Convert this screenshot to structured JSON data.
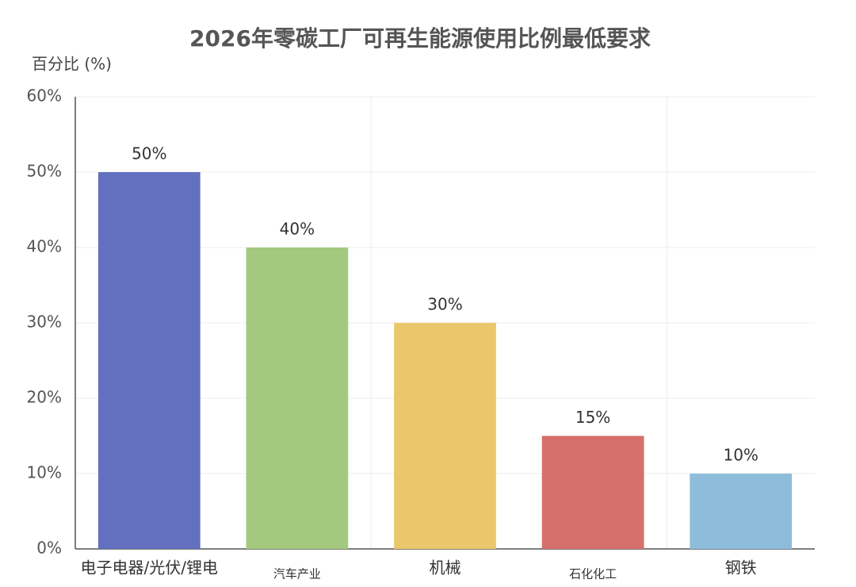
{
  "chart_data": {
    "type": "bar",
    "title": "2026年零碳工厂可再生能源使用比例最低要求",
    "y_label": "百分比 (%)",
    "categories": [
      "电子电器/光伏/锂电",
      "汽车产业",
      "机械",
      "石化化工",
      "钢铁"
    ],
    "values": [
      50,
      40,
      30,
      15,
      10
    ],
    "value_labels": [
      "50%",
      "40%",
      "30%",
      "15%",
      "10%"
    ],
    "colors": [
      "#6270bf",
      "#a3c97f",
      "#eac76b",
      "#d5706a",
      "#8ebddc"
    ],
    "ylim": [
      0,
      60
    ],
    "yticks": [
      {
        "value": 0,
        "label": "0%"
      },
      {
        "value": 10,
        "label": "10%"
      },
      {
        "value": 20,
        "label": "20%"
      },
      {
        "value": 30,
        "label": "30%"
      },
      {
        "value": 40,
        "label": "40%"
      },
      {
        "value": 50,
        "label": "50%"
      },
      {
        "value": 60,
        "label": "60%"
      }
    ],
    "grid": true
  }
}
